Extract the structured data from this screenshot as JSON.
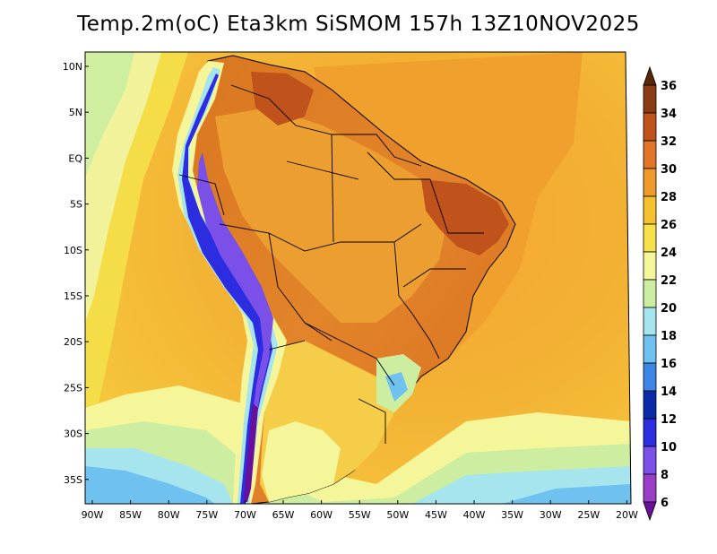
{
  "title": "Temp.2m(oC) Eta3km SiSMOM 157h 13Z10NOV2025",
  "lat_labels": [
    "10N",
    "5N",
    "EQ",
    "5S",
    "10S",
    "15S",
    "20S",
    "25S",
    "30S",
    "35S"
  ],
  "lon_labels": [
    "90W",
    "85W",
    "80W",
    "75W",
    "70W",
    "65W",
    "60W",
    "55W",
    "50W",
    "45W",
    "40W",
    "35W",
    "30W",
    "25W",
    "20W"
  ],
  "colorbar": {
    "labels": [
      "36",
      "34",
      "32",
      "30",
      "28",
      "26",
      "24",
      "22",
      "20",
      "18",
      "16",
      "14",
      "12",
      "10",
      "8",
      "6"
    ],
    "colors": [
      "#5a2608",
      "#8a3c12",
      "#c0521b",
      "#e07427",
      "#f09a2b",
      "#f5c12f",
      "#f7e04a",
      "#f5f59a",
      "#cdeea0",
      "#a6e4ee",
      "#6fc2f0",
      "#3e86e6",
      "#0a2aa8",
      "#2c2ce0",
      "#7a50e8",
      "#9a3ec8",
      "#6a0f9a"
    ]
  }
}
